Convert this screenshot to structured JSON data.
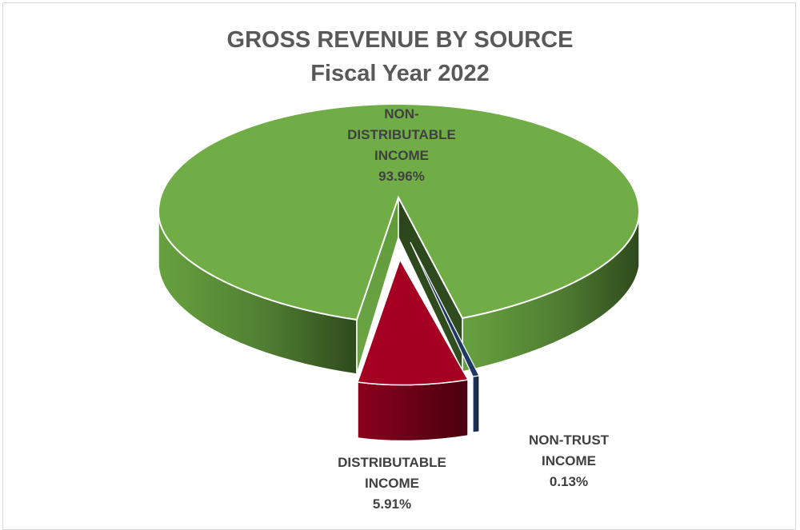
{
  "chart_data": {
    "type": "pie",
    "style": "3d-exploded",
    "title": "GROSS REVENUE BY SOURCE",
    "subtitle": "Fiscal Year 2022",
    "categories": [
      "NON-DISTRIBUTABLE INCOME",
      "DISTRIBUTABLE INCOME",
      "NON-TRUST INCOME"
    ],
    "values": [
      93.96,
      5.91,
      0.13
    ],
    "unit": "%",
    "colors": [
      "#70ad47",
      "#a50021",
      "#1f3864"
    ],
    "labels": [
      {
        "lines": [
          "NON-",
          "DISTRIBUTABLE",
          "INCOME"
        ],
        "value": "93.96%"
      },
      {
        "lines": [
          "DISTRIBUTABLE",
          "INCOME"
        ],
        "value": "5.91%"
      },
      {
        "lines": [
          "NON-TRUST",
          "INCOME"
        ],
        "value": "0.13%"
      }
    ],
    "legend": "none",
    "grid": false
  }
}
